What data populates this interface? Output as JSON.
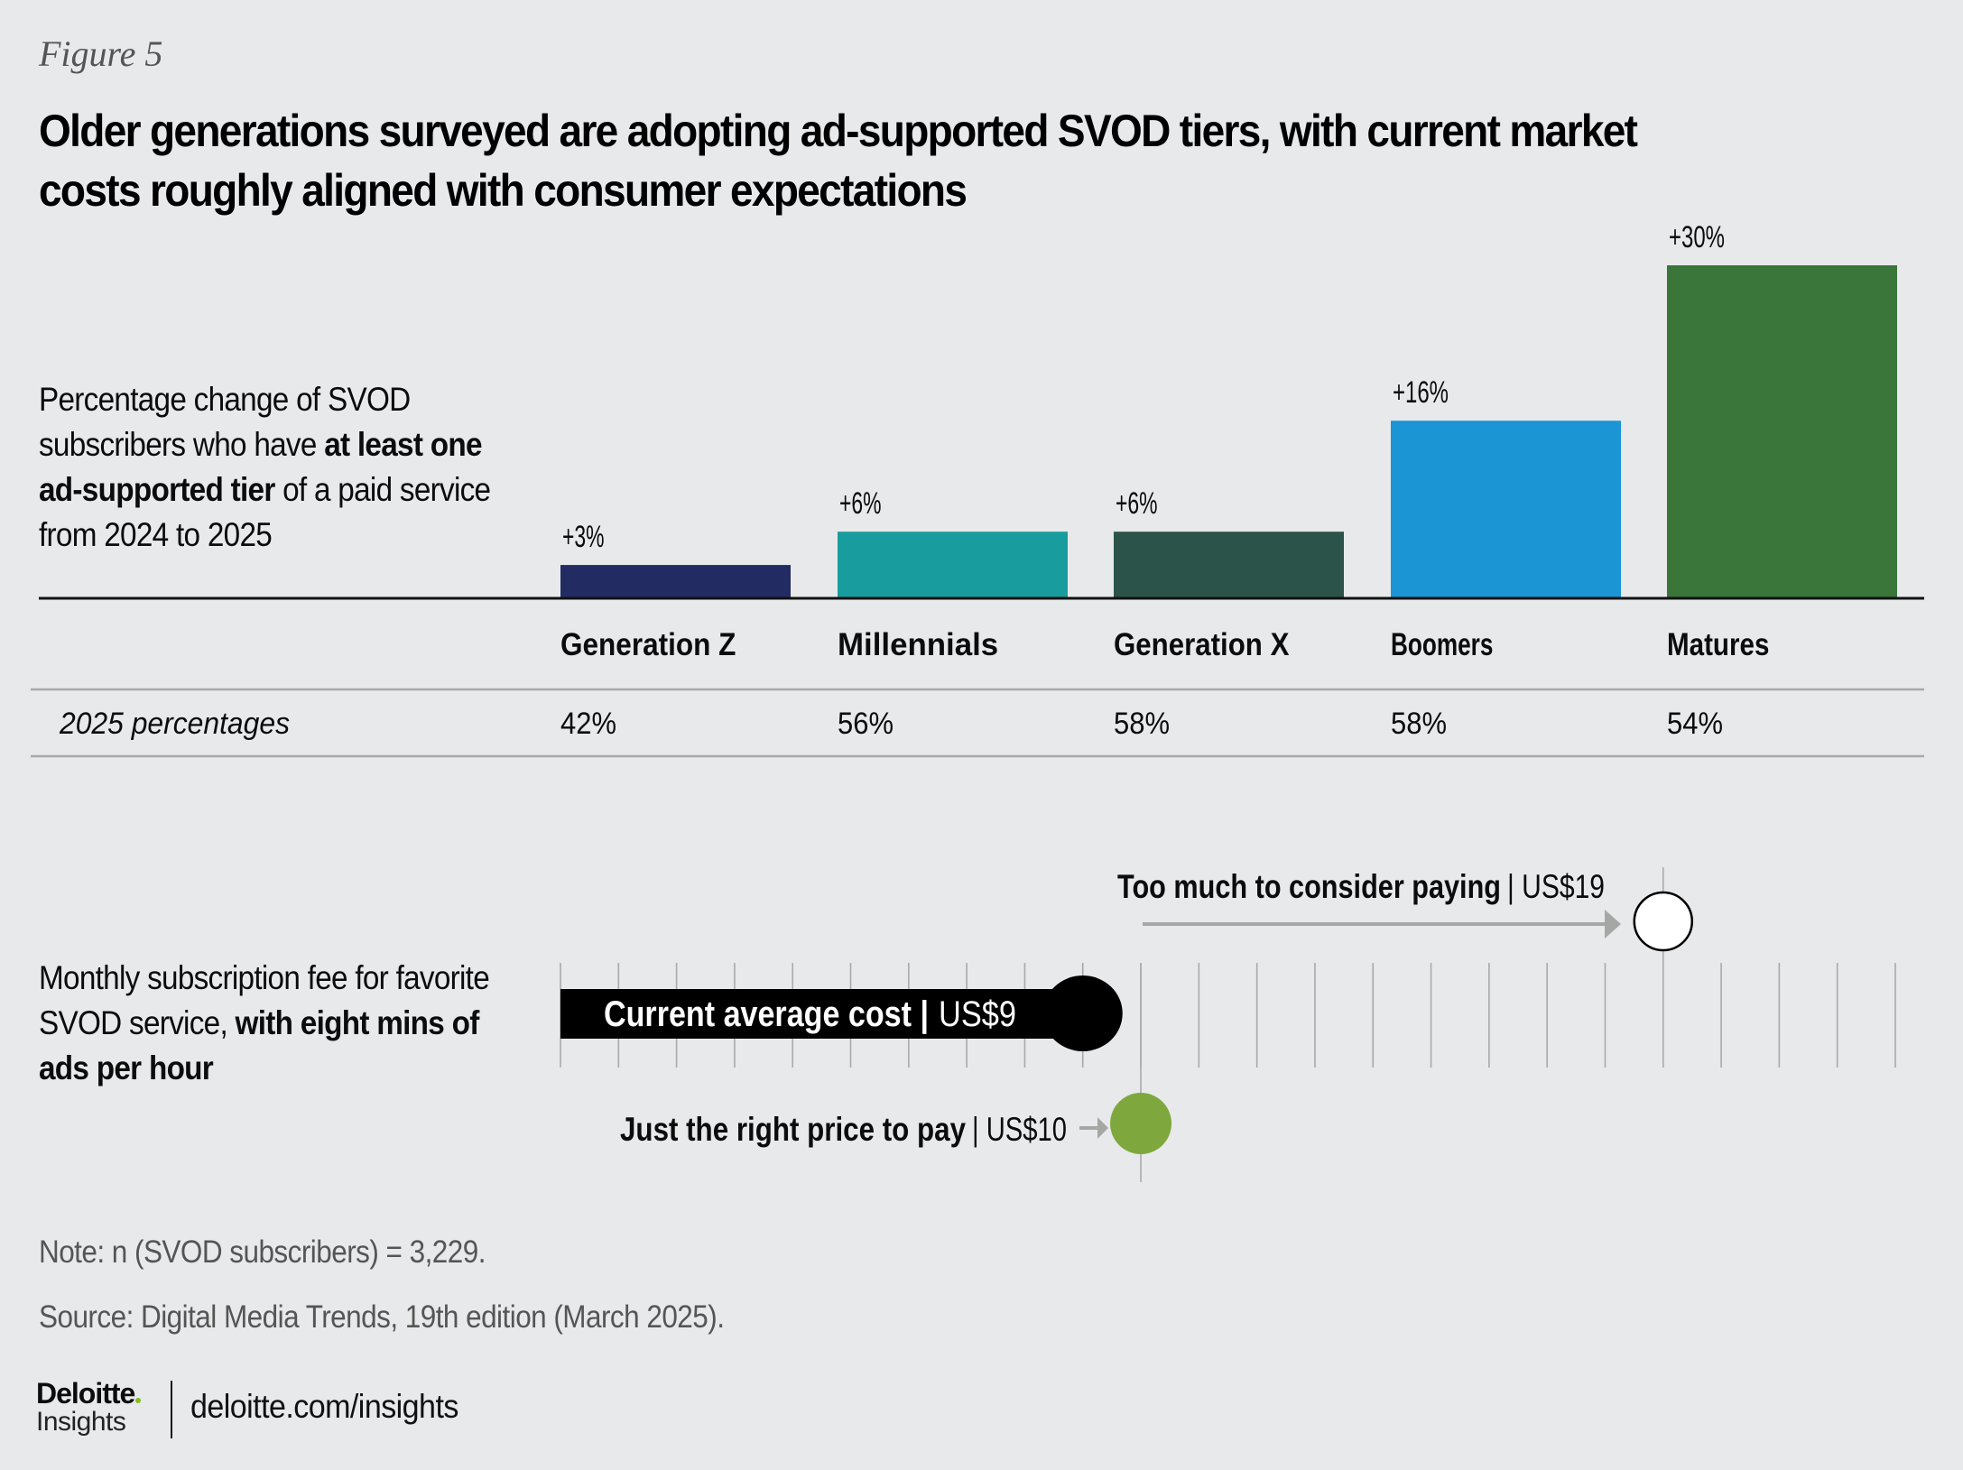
{
  "figure_label": "Figure 5",
  "title": "Older generations surveyed are adopting ad-supported SVOD tiers, with current market costs roughly aligned with consumer expectations",
  "bar_section": {
    "desc_parts": [
      {
        "text": "Percentage change of SVOD subscribers who have ",
        "bold": false
      },
      {
        "text": "at least one ad-supported tier",
        "bold": true
      },
      {
        "text": " of a paid service from 2024 to 2025",
        "bold": false
      }
    ],
    "row_label": "2025 percentages"
  },
  "chart_data": [
    {
      "type": "bar",
      "title": "Percentage change of SVOD subscribers who have at least one ad-supported tier of a paid service from 2024 to 2025",
      "categories": [
        "Generation Z",
        "Millennials",
        "Generation X",
        "Boomers",
        "Matures"
      ],
      "values": [
        3,
        6,
        6,
        16,
        30
      ],
      "data_labels": [
        "+3%",
        "+6%",
        "+6%",
        "+16%",
        "+30%"
      ],
      "colors": [
        "#222b62",
        "#189c9e",
        "#2b5349",
        "#1b95d4",
        "#3a7539"
      ],
      "table_row": {
        "label": "2025 percentages",
        "values": [
          "42%",
          "56%",
          "58%",
          "58%",
          "54%"
        ]
      },
      "xlabel": "",
      "ylabel": "",
      "ylim": [
        0,
        30
      ],
      "grid": false
    },
    {
      "type": "scatter",
      "title": "Monthly subscription fee for favorite SVOD service, with eight mins of ads per hour",
      "x_range": [
        0,
        23
      ],
      "tick_count": 24,
      "points": [
        {
          "name": "Current average cost",
          "label": "Current average cost",
          "value_label": "US$9",
          "value": 9,
          "color": "#000000"
        },
        {
          "name": "Just the right price to pay",
          "label": "Just the right price to pay",
          "value_label": "US$10",
          "value": 10,
          "color": "#7ea83d"
        },
        {
          "name": "Too much to consider paying",
          "label": "Too much to consider paying",
          "value_label": "US$19",
          "value": 19,
          "color": "#ffffff"
        }
      ]
    }
  ],
  "price_section": {
    "desc_parts": [
      {
        "text": "Monthly subscription fee for favorite SVOD service, ",
        "bold": false
      },
      {
        "text": "with eight mins of ads per hour",
        "bold": true
      }
    ]
  },
  "footer": {
    "note": "Note: n (SVOD subscribers) = 3,229.",
    "source": "Source: Digital Media Trends, 19th edition (March 2025).",
    "brand": "Deloitte",
    "brand_dot_color": "#86bc25",
    "brand_sub": "Insights",
    "url": "deloitte.com/insights"
  }
}
